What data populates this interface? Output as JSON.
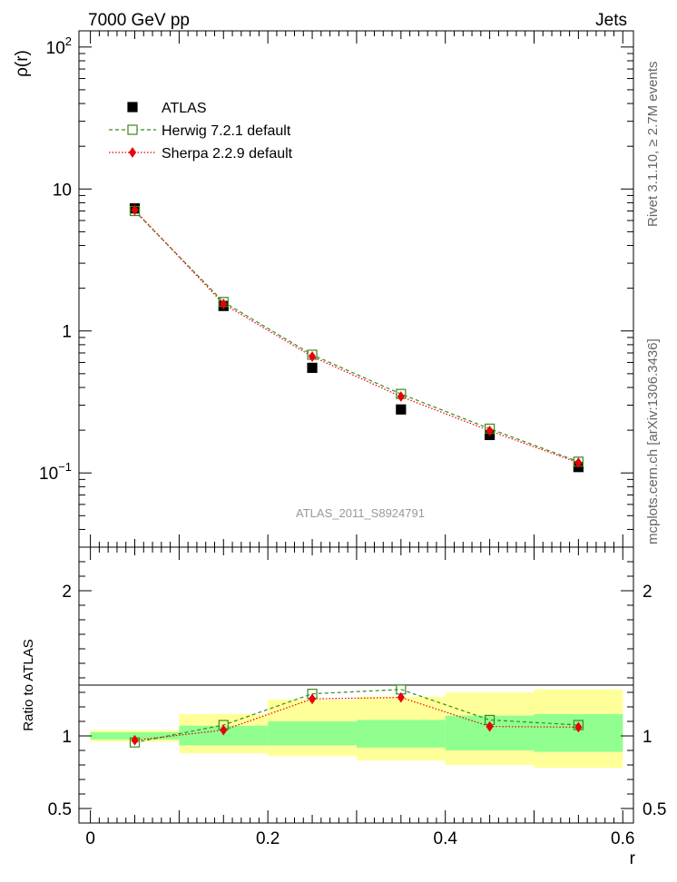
{
  "header": {
    "left": "7000 GeV pp",
    "right": "Jets"
  },
  "side_labels": {
    "rivet": "Rivet 3.1.10, ≥ 2.7M events",
    "mcplots": "mcplots.cern.ch [arXiv:1306.3436]"
  },
  "analysis_id": "ATLAS_2011_S8924791",
  "chart_data": [
    {
      "type": "scatter",
      "panel": "main",
      "ylabel": "ρ(r)",
      "xlabel": "",
      "yscale": "log",
      "ylim": [
        0.03,
        130
      ],
      "xlim": [
        -0.0129,
        0.612
      ],
      "y_tick_labels": [
        {
          "value": 0.1,
          "base": "10",
          "exp": "−1"
        },
        {
          "value": 1,
          "base": "1",
          "exp": ""
        },
        {
          "value": 10,
          "base": "10",
          "exp": ""
        },
        {
          "value": 100,
          "base": "10",
          "exp": "2"
        }
      ],
      "legend_position": "top-left",
      "x": [
        0.05,
        0.15,
        0.25,
        0.35,
        0.45,
        0.55
      ],
      "series": [
        {
          "name": "ATLAS",
          "marker": "filled-square",
          "color": "#000000",
          "values": [
            7.3,
            1.5,
            0.55,
            0.28,
            0.185,
            0.11
          ]
        },
        {
          "name": "Herwig 7.2.1 default",
          "marker": "open-square",
          "line": "dashed",
          "color": "#3a8a1a",
          "values": [
            7.0,
            1.6,
            0.68,
            0.36,
            0.205,
            0.12
          ]
        },
        {
          "name": "Sherpa 2.2.9 default",
          "marker": "diamond",
          "line": "dotted",
          "color": "#e8000a",
          "values": [
            7.1,
            1.55,
            0.66,
            0.345,
            0.198,
            0.118
          ]
        }
      ]
    },
    {
      "type": "scatter",
      "panel": "ratio",
      "ylabel": "Ratio to ATLAS",
      "xlabel": "r",
      "ylim": [
        0.4,
        2.3
      ],
      "xlim": [
        -0.0129,
        0.612
      ],
      "y_ticks": [
        0.5,
        1,
        2
      ],
      "y_tick_labels": [
        "0.5",
        "1",
        "2"
      ],
      "x_ticks": [
        0,
        0.2,
        0.4,
        0.6
      ],
      "x_tick_labels": [
        "0",
        "0.2",
        "0.4",
        "0.6"
      ],
      "x": [
        0.05,
        0.15,
        0.25,
        0.35,
        0.45,
        0.55
      ],
      "bin_edges": [
        0.0,
        0.1,
        0.2,
        0.3,
        0.4,
        0.5,
        0.6
      ],
      "bands": {
        "stat": {
          "color": "#90ff90",
          "lower": [
            0.975,
            0.935,
            0.935,
            0.92,
            0.9,
            0.89
          ],
          "upper": [
            1.025,
            1.07,
            1.1,
            1.11,
            1.14,
            1.15
          ]
        },
        "total": {
          "color": "#ffff99",
          "lower": [
            0.96,
            0.88,
            0.86,
            0.83,
            0.8,
            0.78
          ],
          "upper": [
            1.04,
            1.15,
            1.25,
            1.27,
            1.3,
            1.32
          ]
        }
      },
      "series": [
        {
          "name": "Herwig 7.2.1 default",
          "color": "#3a8a1a",
          "values": [
            0.955,
            1.075,
            1.29,
            1.32,
            1.11,
            1.075
          ]
        },
        {
          "name": "Sherpa 2.2.9 default",
          "color": "#e8000a",
          "values": [
            0.97,
            1.04,
            1.255,
            1.265,
            1.065,
            1.06
          ]
        }
      ]
    }
  ]
}
